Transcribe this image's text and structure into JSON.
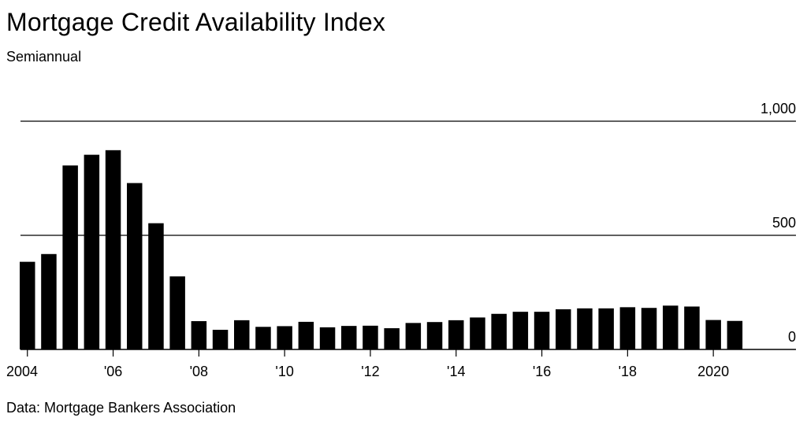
{
  "title": "Mortgage Credit Availability Index",
  "subtitle": "Semiannual",
  "source": "Data: Mortgage Bankers Association",
  "chart_data": {
    "type": "bar",
    "title": "Mortgage Credit Availability Index",
    "subtitle": "Semiannual",
    "xlabel": "",
    "ylabel": "",
    "ylim": [
      0,
      1000
    ],
    "yticks": [
      "0",
      "500",
      "1,000"
    ],
    "xticks": [
      "2004",
      "'06",
      "'08",
      "'10",
      "'12",
      "'14",
      "'16",
      "'18",
      "2020"
    ],
    "grid": true,
    "color": "#000000",
    "categories": [
      "H1 2004",
      "H2 2004",
      "H1 2005",
      "H2 2005",
      "H1 2006",
      "H2 2006",
      "H1 2007",
      "H2 2007",
      "H1 2008",
      "H2 2008",
      "H1 2009",
      "H2 2009",
      "H1 2010",
      "H2 2010",
      "H1 2011",
      "H2 2011",
      "H1 2012",
      "H2 2012",
      "H1 2013",
      "H2 2013",
      "H1 2014",
      "H2 2014",
      "H1 2015",
      "H2 2015",
      "H1 2016",
      "H2 2016",
      "H1 2017",
      "H2 2017",
      "H1 2018",
      "H2 2018",
      "H1 2019",
      "H2 2019",
      "H1 2020",
      "H2 2020"
    ],
    "values": [
      384,
      418,
      806,
      853,
      873,
      729,
      553,
      320,
      124,
      86,
      128,
      99,
      102,
      121,
      97,
      103,
      104,
      93,
      116,
      120,
      128,
      140,
      156,
      165,
      165,
      176,
      180,
      180,
      185,
      182,
      192,
      188,
      129,
      125
    ]
  }
}
